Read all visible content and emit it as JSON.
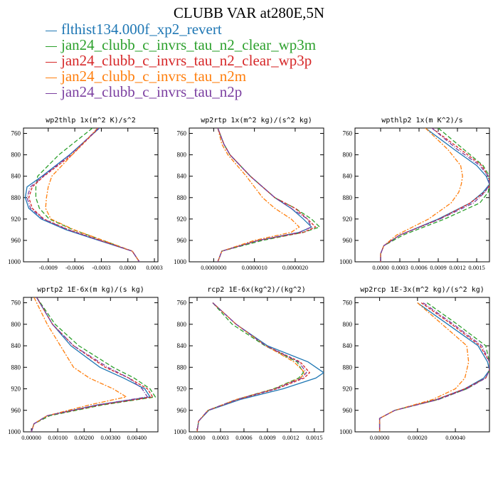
{
  "title": "CLUBB VAR at280E,5N",
  "legend": [
    {
      "name": "flthist134.000f_xp2_revert",
      "color": "#1f77b4"
    },
    {
      "name": "jan24_clubb_c_invrs_tau_n2_clear_wp3m",
      "color": "#2ca02c"
    },
    {
      "name": "jan24_clubb_c_invrs_tau_n2_clear_wp3p",
      "color": "#d62728"
    },
    {
      "name": "jan24_clubb_c_invrs_tau_n2m",
      "color": "#ff7f0e"
    },
    {
      "name": "jan24_clubb_c_invrs_tau_n2p",
      "color": "#7b3fa0"
    }
  ],
  "chart_data": [
    {
      "type": "line",
      "title": "wp2thlp  1x(m^2 K)/s^2",
      "xlim": [
        -0.00118,
        0.00034
      ],
      "xticks": [
        -0.0009,
        -0.0006,
        -0.0003,
        0.0,
        0.0003
      ],
      "xtick_labels": [
        "-0.0009",
        "-0.0006",
        "-0.0003",
        "0.0000",
        "0.0003"
      ],
      "ylim": [
        1000,
        750
      ],
      "yticks": [
        760,
        800,
        840,
        880,
        920,
        960,
        1000
      ],
      "y": [
        750,
        800,
        840,
        860,
        880,
        900,
        920,
        940,
        960,
        980,
        1000
      ],
      "series": [
        {
          "values": [
            -0.00032,
            -0.00066,
            -0.00097,
            -0.00114,
            -0.00116,
            -0.00112,
            -0.00098,
            -0.0007,
            -0.00033,
            5e-05,
            0.00013
          ]
        },
        {
          "values": [
            -0.0004,
            -0.00078,
            -0.00102,
            -0.00104,
            -0.00104,
            -0.001,
            -0.00089,
            -0.00062,
            -0.00028,
            5e-05,
            0.00013
          ]
        },
        {
          "values": [
            -0.00033,
            -0.00063,
            -0.00095,
            -0.00108,
            -0.00112,
            -0.00108,
            -0.00095,
            -0.00067,
            -0.00031,
            5e-05,
            0.00013
          ]
        },
        {
          "values": [
            -0.00034,
            -0.00063,
            -0.00086,
            -0.0009,
            -0.00092,
            -0.00093,
            -0.00087,
            -0.00061,
            -0.00028,
            5e-05,
            0.00013
          ]
        },
        {
          "values": [
            -0.00033,
            -0.00065,
            -0.00096,
            -0.0011,
            -0.00114,
            -0.0011,
            -0.00096,
            -0.00068,
            -0.00032,
            5e-05,
            0.00013
          ]
        }
      ]
    },
    {
      "type": "line",
      "title": "wp2rtp  1x(m^2 kg)/(s^2 kg)",
      "xlim": [
        -6e-07,
        2.7e-06
      ],
      "xticks": [
        0.0,
        1e-06,
        2e-06
      ],
      "xtick_labels": [
        "0.0000000",
        "0.0000010",
        "0.0000020"
      ],
      "ylim": [
        1000,
        750
      ],
      "yticks": [
        760,
        800,
        840,
        880,
        920,
        960,
        1000
      ],
      "y": [
        750,
        780,
        800,
        840,
        880,
        900,
        920,
        935,
        945,
        960,
        980,
        1000
      ],
      "series": [
        {
          "values": [
            1e-07,
            2.5e-07,
            4e-07,
            9e-07,
            1.5e-06,
            1.9e-06,
            2.2e-06,
            2.4e-06,
            2.1e-06,
            1.1e-06,
            2e-07,
            1e-07
          ]
        },
        {
          "values": [
            1e-07,
            2.5e-07,
            4e-07,
            9e-07,
            1.5e-06,
            2e-06,
            2.4e-06,
            2.6e-06,
            2.2e-06,
            1.2e-06,
            2e-07,
            1e-07
          ]
        },
        {
          "values": [
            1e-07,
            2.5e-07,
            4e-07,
            9e-07,
            1.5e-06,
            2e-06,
            2.3e-06,
            2.5e-06,
            2.2e-06,
            1.1e-06,
            2e-07,
            1e-07
          ]
        },
        {
          "values": [
            1e-07,
            2e-07,
            3.5e-07,
            8e-07,
            1.2e-06,
            1.5e-06,
            1.9e-06,
            2.1e-06,
            1.9e-06,
            1e-06,
            2e-07,
            1e-07
          ]
        },
        {
          "values": [
            1e-07,
            2.5e-07,
            4e-07,
            9e-07,
            1.5e-06,
            1.9e-06,
            2.3e-06,
            2.4e-06,
            2.1e-06,
            1.1e-06,
            2e-07,
            1e-07
          ]
        }
      ]
    },
    {
      "type": "line",
      "title": "wpthlp2  1x(m K^2)/s",
      "xlim": [
        -0.0004,
        0.0017
      ],
      "xticks": [
        0.0,
        0.0003,
        0.0006,
        0.0009,
        0.0012,
        0.0015
      ],
      "xtick_labels": [
        "0.0000",
        "0.0003",
        "0.0006",
        "0.0009",
        "0.0012",
        "0.0015"
      ],
      "ylim": [
        1000,
        750
      ],
      "yticks": [
        760,
        800,
        840,
        880,
        920,
        960,
        1000
      ],
      "y": [
        750,
        790,
        820,
        840,
        855,
        870,
        890,
        920,
        950,
        970,
        985,
        1000
      ],
      "series": [
        {
          "values": [
            0.0007,
            0.00115,
            0.0015,
            0.00165,
            0.0017,
            0.0016,
            0.0014,
            0.0009,
            0.0003,
            5e-05,
            0.0,
            0.0
          ]
        },
        {
          "values": [
            0.0009,
            0.0013,
            0.0016,
            0.0017,
            0.0017,
            0.00168,
            0.00155,
            0.001,
            0.00035,
            5e-05,
            0.0,
            0.0
          ]
        },
        {
          "values": [
            0.0008,
            0.00125,
            0.00158,
            0.00168,
            0.00172,
            0.00162,
            0.0014,
            0.00092,
            0.0003,
            5e-05,
            0.0,
            0.0
          ]
        },
        {
          "values": [
            0.0007,
            0.00105,
            0.00125,
            0.00128,
            0.00126,
            0.00122,
            0.0011,
            0.00075,
            0.00025,
            5e-05,
            0.0,
            0.0
          ]
        },
        {
          "values": [
            0.0008,
            0.0012,
            0.00155,
            0.00168,
            0.0017,
            0.00163,
            0.00145,
            0.00093,
            0.0003,
            5e-05,
            0.0,
            0.0
          ]
        }
      ]
    },
    {
      "type": "line",
      "title": "wprtp2  1E-6x(m kg)/(s kg)",
      "xlim": [
        -0.0003,
        0.0048
      ],
      "xticks": [
        0.0,
        0.001,
        0.002,
        0.003,
        0.004
      ],
      "xtick_labels": [
        "0.00000",
        "0.00100",
        "0.00200",
        "0.00300",
        "0.00400"
      ],
      "ylim": [
        1000,
        750
      ],
      "yticks": [
        760,
        800,
        840,
        880,
        920,
        960,
        1000
      ],
      "y": [
        750,
        800,
        840,
        880,
        900,
        920,
        935,
        950,
        970,
        985,
        1000
      ],
      "series": [
        {
          "values": [
            0.0002,
            0.0008,
            0.0015,
            0.0026,
            0.0035,
            0.0043,
            0.0045,
            0.0025,
            0.0006,
            0.0001,
            0.0
          ]
        },
        {
          "values": [
            0.0002,
            0.0009,
            0.0018,
            0.0031,
            0.0039,
            0.0045,
            0.0047,
            0.0027,
            0.0007,
            0.0001,
            0.0
          ]
        },
        {
          "values": [
            0.0002,
            0.0008,
            0.0016,
            0.0028,
            0.0037,
            0.0044,
            0.0046,
            0.0026,
            0.0006,
            0.0001,
            0.0
          ]
        },
        {
          "values": [
            0.0001,
            0.0006,
            0.0011,
            0.0016,
            0.0022,
            0.0031,
            0.0036,
            0.0022,
            0.0006,
            0.0001,
            0.0
          ]
        },
        {
          "values": [
            0.0002,
            0.0008,
            0.0016,
            0.0029,
            0.0037,
            0.0042,
            0.0044,
            0.0025,
            0.0006,
            0.0001,
            0.0
          ]
        }
      ]
    },
    {
      "type": "line",
      "title": "rcp2  1E-6x(kg^2)/(kg^2)",
      "xlim": [
        -0.0001,
        0.00162
      ],
      "xticks": [
        0.0,
        0.0003,
        0.0006,
        0.0009,
        0.0012,
        0.0015
      ],
      "xtick_labels": [
        "0.0000",
        "0.0003",
        "0.0006",
        "0.0009",
        "0.0012",
        "0.0015"
      ],
      "ylim": [
        1000,
        750
      ],
      "yticks": [
        760,
        800,
        840,
        880,
        920,
        960,
        1000
      ],
      "y": [
        760,
        800,
        840,
        870,
        890,
        900,
        920,
        940,
        960,
        980,
        1000
      ],
      "series": [
        {
          "values": [
            0.0002,
            0.0005,
            0.0009,
            0.00142,
            0.00162,
            0.00152,
            0.0011,
            0.00055,
            0.00015,
            2e-05,
            0.0
          ]
        },
        {
          "values": [
            0.0002,
            0.00045,
            0.00087,
            0.00128,
            0.00136,
            0.0013,
            0.00098,
            0.0005,
            0.00014,
            2e-05,
            0.0
          ]
        },
        {
          "values": [
            0.0002,
            0.0005,
            0.00088,
            0.00132,
            0.00144,
            0.00137,
            0.00102,
            0.00052,
            0.00014,
            2e-05,
            0.0
          ]
        },
        {
          "values": [
            0.0002,
            0.0005,
            0.00088,
            0.00124,
            0.00138,
            0.00132,
            0.00099,
            0.0005,
            0.00014,
            2e-05,
            0.0
          ]
        },
        {
          "values": [
            0.0002,
            0.0005,
            0.00088,
            0.0013,
            0.0014,
            0.00134,
            0.001,
            0.00051,
            0.00014,
            2e-05,
            0.0
          ]
        }
      ]
    },
    {
      "type": "line",
      "title": "wp2rcp  1E-3x(m^2 kg)/(s^2 kg)",
      "xlim": [
        -0.00013,
        0.00058
      ],
      "xticks": [
        0.0,
        0.0002,
        0.0004
      ],
      "xtick_labels": [
        "0.00000",
        "0.00020",
        "0.00040"
      ],
      "ylim": [
        1000,
        750
      ],
      "yticks": [
        760,
        800,
        840,
        880,
        920,
        960,
        1000
      ],
      "y": [
        760,
        800,
        840,
        870,
        885,
        900,
        920,
        940,
        960,
        975,
        990,
        1000
      ],
      "series": [
        {
          "values": [
            0.0002,
            0.00036,
            0.00052,
            0.00057,
            0.00058,
            0.00055,
            0.00045,
            0.0003,
            8e-05,
            0.0,
            0.0,
            0.0
          ]
        },
        {
          "values": [
            0.00025,
            0.00041,
            0.00056,
            0.00058,
            0.00058,
            0.00056,
            0.00046,
            0.00031,
            8e-05,
            0.0,
            0.0,
            0.0
          ]
        },
        {
          "values": [
            0.00022,
            0.00038,
            0.00053,
            0.00058,
            0.00058,
            0.00056,
            0.00045,
            0.0003,
            8e-05,
            0.0,
            0.0,
            0.0
          ]
        },
        {
          "values": [
            0.0002,
            0.00033,
            0.00046,
            0.00047,
            0.00046,
            0.00045,
            0.0004,
            0.00028,
            8e-05,
            0.0,
            0.0,
            0.0
          ]
        },
        {
          "values": [
            0.00023,
            0.00039,
            0.00054,
            0.00058,
            0.00058,
            0.00056,
            0.00046,
            0.00031,
            8e-05,
            0.0,
            0.0,
            0.0
          ]
        }
      ]
    }
  ]
}
